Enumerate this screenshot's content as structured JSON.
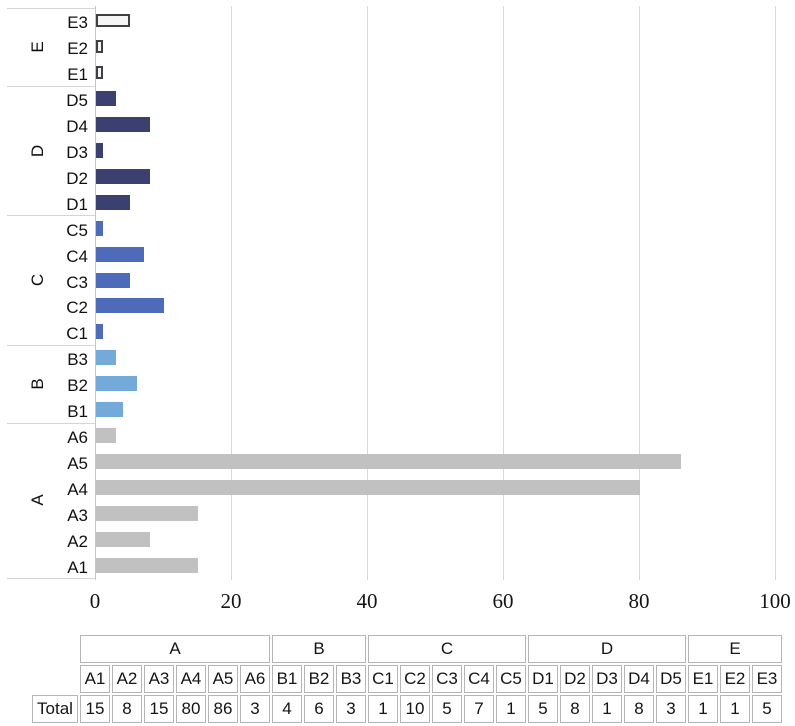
{
  "chart_data": {
    "type": "bar",
    "orientation": "horizontal",
    "title": "",
    "xlabel": "",
    "ylabel": "",
    "xlim": [
      0,
      100
    ],
    "x_ticks": [
      "0",
      "20",
      "40",
      "60",
      "80",
      "100"
    ],
    "grid": true,
    "legend": false,
    "groups": [
      {
        "name": "E",
        "fill": "#f5f5f5",
        "border": "#3f3f44",
        "items": [
          {
            "label": "E3",
            "value": 5
          },
          {
            "label": "E2",
            "value": 1
          },
          {
            "label": "E1",
            "value": 1
          }
        ]
      },
      {
        "name": "D",
        "fill": "#3a406f",
        "items": [
          {
            "label": "D5",
            "value": 3
          },
          {
            "label": "D4",
            "value": 8
          },
          {
            "label": "D3",
            "value": 1
          },
          {
            "label": "D2",
            "value": 8
          },
          {
            "label": "D1",
            "value": 5
          }
        ]
      },
      {
        "name": "C",
        "fill": "#4e6bba",
        "items": [
          {
            "label": "C5",
            "value": 1
          },
          {
            "label": "C4",
            "value": 7
          },
          {
            "label": "C3",
            "value": 5
          },
          {
            "label": "C2",
            "value": 10
          },
          {
            "label": "C1",
            "value": 1
          }
        ]
      },
      {
        "name": "B",
        "fill": "#74aad9",
        "items": [
          {
            "label": "B3",
            "value": 3
          },
          {
            "label": "B2",
            "value": 6
          },
          {
            "label": "B1",
            "value": 4
          }
        ]
      },
      {
        "name": "A",
        "fill": "#c1c1c1",
        "items": [
          {
            "label": "A6",
            "value": 3
          },
          {
            "label": "A5",
            "value": 86
          },
          {
            "label": "A4",
            "value": 80
          },
          {
            "label": "A3",
            "value": 15
          },
          {
            "label": "A2",
            "value": 8
          },
          {
            "label": "A1",
            "value": 15
          }
        ]
      }
    ]
  },
  "table": {
    "row_label": "Total",
    "groups": [
      {
        "name": "A",
        "columns": [
          "A1",
          "A2",
          "A3",
          "A4",
          "A5",
          "A6"
        ],
        "values": [
          15,
          8,
          15,
          80,
          86,
          3
        ]
      },
      {
        "name": "B",
        "columns": [
          "B1",
          "B2",
          "B3"
        ],
        "values": [
          4,
          6,
          3
        ]
      },
      {
        "name": "C",
        "columns": [
          "C1",
          "C2",
          "C3",
          "C4",
          "C5"
        ],
        "values": [
          1,
          10,
          5,
          7,
          1
        ]
      },
      {
        "name": "D",
        "columns": [
          "D1",
          "D2",
          "D3",
          "D4",
          "D5"
        ],
        "values": [
          5,
          8,
          1,
          8,
          3
        ]
      },
      {
        "name": "E",
        "columns": [
          "E1",
          "E2",
          "E3"
        ],
        "values": [
          1,
          1,
          5
        ]
      }
    ]
  },
  "colors": {
    "series_E_fill": "#f5f5f5",
    "series_E_border": "#3f3f44",
    "series_D": "#3a406f",
    "series_C": "#4e6bba",
    "series_B": "#74aad9",
    "series_A": "#c1c1c1",
    "gridline": "#d9d9d9",
    "axis_line": "#c6c6c6",
    "table_border": "#b5b5b5",
    "text": "#141414"
  }
}
